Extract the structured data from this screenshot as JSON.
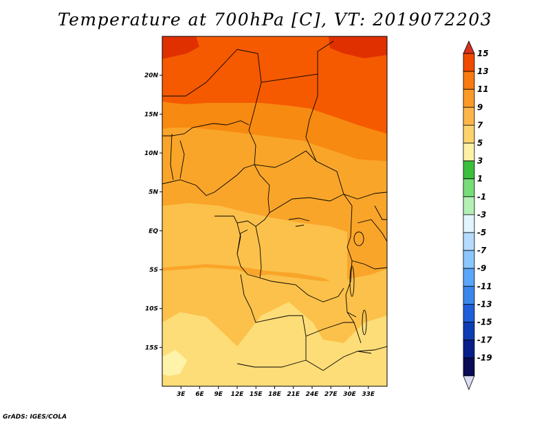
{
  "title": "Temperature at 700hPa [C], VT: 2019072203",
  "credit": "GrADS: IGES/COLA",
  "map": {
    "lon_range": [
      0,
      36
    ],
    "lat_range": [
      -20,
      25
    ],
    "lat_ticks": [
      "20N",
      "15N",
      "10N",
      "5N",
      "EQ",
      "5S",
      "10S",
      "15S"
    ],
    "lon_ticks": [
      "3E",
      "6E",
      "9E",
      "12E",
      "15E",
      "18E",
      "21E",
      "24E",
      "27E",
      "30E",
      "33E"
    ],
    "colors": {
      "15": "#e03000",
      "13": "#f55a00",
      "11": "#f78a10",
      "9": "#f9a52a",
      "7": "#fbc14a",
      "5": "#fddd78",
      "3": "#fef3a8"
    }
  },
  "colorbar": {
    "labels": [
      "15",
      "13",
      "11",
      "9",
      "7",
      "5",
      "3",
      "1",
      "-1",
      "-3",
      "-5",
      "-7",
      "-9",
      "-11",
      "-13",
      "-15",
      "-17",
      "-19"
    ],
    "colors": [
      "#d7301f",
      "#ee4a00",
      "#f97a10",
      "#fb9a28",
      "#fdb54a",
      "#fed36e",
      "#fef0a4",
      "#3cbf3c",
      "#78dc78",
      "#b4f0b4",
      "#e0f5ff",
      "#b5dcff",
      "#8cc6ff",
      "#5aa6fa",
      "#3a86eb",
      "#1e5ed8",
      "#0e3cb4",
      "#081e8a",
      "#0a0a55"
    ],
    "low_arrow_color": "#dcdcf5"
  }
}
